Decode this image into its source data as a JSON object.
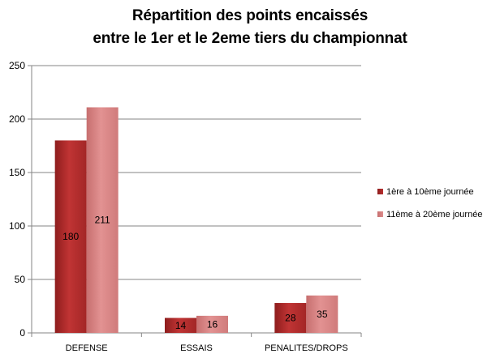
{
  "title_lines": [
    "Répartition des points encaissés",
    "entre le 1er et le 2eme tiers du championnat"
  ],
  "chart_data": {
    "type": "bar",
    "title": "Répartition des points encaissés entre le 1er et le 2eme tiers du championnat",
    "categories": [
      "DEFENSE",
      "ESSAIS",
      "PENALITES/DROPS"
    ],
    "series": [
      {
        "name": "1ère à 10ème journée",
        "values": [
          180,
          14,
          28
        ],
        "color": "#b52a2a"
      },
      {
        "name": "11ème à 20ème journée",
        "values": [
          211,
          16,
          35
        ],
        "color": "#d98383"
      }
    ],
    "ylim": [
      0,
      250
    ],
    "yticks": [
      0,
      50,
      100,
      150,
      200,
      250
    ],
    "grid": true,
    "legend": "right",
    "data_labels": true
  }
}
